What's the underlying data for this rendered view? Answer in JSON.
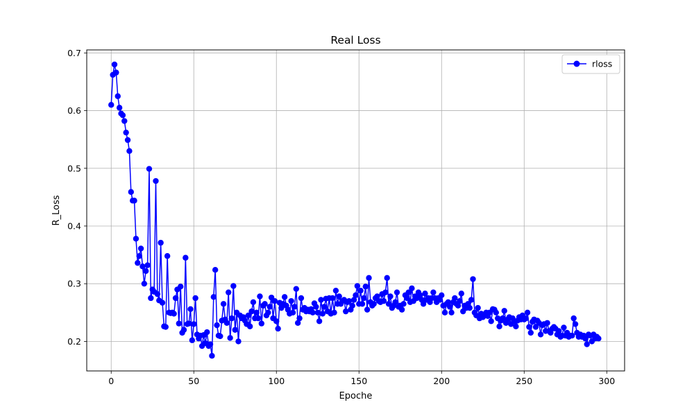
{
  "chart_data": {
    "type": "line",
    "title": "Real Loss",
    "xlabel": "Epoche",
    "ylabel": "R_Loss",
    "xlim": [
      -14.8,
      310.8
    ],
    "ylim": [
      0.1488,
      0.7052
    ],
    "xticks": [
      0,
      50,
      100,
      150,
      200,
      250,
      300
    ],
    "yticks": [
      0.2,
      0.3,
      0.4,
      0.5,
      0.6,
      0.7
    ],
    "xtick_labels": [
      "0",
      "50",
      "100",
      "150",
      "200",
      "250",
      "300"
    ],
    "ytick_labels": [
      "0.2",
      "0.3",
      "0.4",
      "0.5",
      "0.6",
      "0.7"
    ],
    "grid": true,
    "legend_position": "top-right",
    "series": [
      {
        "name": "rloss",
        "color": "#0000ff",
        "marker": "circle",
        "values": [
          0.61,
          0.662,
          0.68,
          0.666,
          0.625,
          0.605,
          0.595,
          0.592,
          0.582,
          0.562,
          0.549,
          0.53,
          0.459,
          0.444,
          0.444,
          0.378,
          0.336,
          0.348,
          0.361,
          0.33,
          0.3,
          0.322,
          0.332,
          0.499,
          0.275,
          0.29,
          0.286,
          0.478,
          0.282,
          0.271,
          0.371,
          0.267,
          0.226,
          0.225,
          0.348,
          0.25,
          0.249,
          0.25,
          0.248,
          0.275,
          0.29,
          0.231,
          0.295,
          0.215,
          0.22,
          0.345,
          0.23,
          0.231,
          0.256,
          0.202,
          0.23,
          0.275,
          0.212,
          0.205,
          0.21,
          0.192,
          0.211,
          0.197,
          0.216,
          0.192,
          0.195,
          0.175,
          0.277,
          0.324,
          0.228,
          0.21,
          0.209,
          0.236,
          0.265,
          0.238,
          0.232,
          0.285,
          0.206,
          0.24,
          0.296,
          0.22,
          0.25,
          0.2,
          0.245,
          0.24,
          0.242,
          0.236,
          0.23,
          0.245,
          0.226,
          0.252,
          0.268,
          0.24,
          0.25,
          0.24,
          0.278,
          0.231,
          0.262,
          0.265,
          0.245,
          0.25,
          0.26,
          0.276,
          0.24,
          0.27,
          0.235,
          0.222,
          0.267,
          0.258,
          0.265,
          0.277,
          0.262,
          0.255,
          0.248,
          0.27,
          0.25,
          0.26,
          0.291,
          0.232,
          0.24,
          0.275,
          0.255,
          0.258,
          0.252,
          0.255,
          0.252,
          0.256,
          0.25,
          0.266,
          0.26,
          0.25,
          0.235,
          0.272,
          0.248,
          0.26,
          0.274,
          0.252,
          0.275,
          0.248,
          0.275,
          0.25,
          0.288,
          0.265,
          0.278,
          0.265,
          0.27,
          0.272,
          0.252,
          0.268,
          0.27,
          0.255,
          0.262,
          0.272,
          0.28,
          0.296,
          0.265,
          0.288,
          0.265,
          0.275,
          0.295,
          0.255,
          0.31,
          0.268,
          0.262,
          0.265,
          0.275,
          0.278,
          0.27,
          0.268,
          0.282,
          0.27,
          0.285,
          0.31,
          0.265,
          0.278,
          0.258,
          0.262,
          0.268,
          0.285,
          0.26,
          0.262,
          0.255,
          0.265,
          0.28,
          0.275,
          0.285,
          0.268,
          0.292,
          0.27,
          0.278,
          0.275,
          0.285,
          0.28,
          0.272,
          0.265,
          0.283,
          0.272,
          0.275,
          0.268,
          0.275,
          0.285,
          0.275,
          0.268,
          0.275,
          0.272,
          0.28,
          0.262,
          0.25,
          0.265,
          0.268,
          0.26,
          0.25,
          0.268,
          0.275,
          0.265,
          0.262,
          0.27,
          0.283,
          0.252,
          0.262,
          0.258,
          0.265,
          0.258,
          0.272,
          0.308,
          0.25,
          0.245,
          0.258,
          0.24,
          0.248,
          0.242,
          0.245,
          0.25,
          0.244,
          0.25,
          0.235,
          0.256,
          0.255,
          0.25,
          0.24,
          0.226,
          0.236,
          0.24,
          0.253,
          0.232,
          0.238,
          0.242,
          0.23,
          0.24,
          0.235,
          0.226,
          0.236,
          0.242,
          0.238,
          0.245,
          0.238,
          0.24,
          0.25,
          0.225,
          0.215,
          0.234,
          0.238,
          0.225,
          0.236,
          0.232,
          0.212,
          0.228,
          0.23,
          0.218,
          0.232,
          0.218,
          0.215,
          0.222,
          0.225,
          0.222,
          0.212,
          0.218,
          0.208,
          0.21,
          0.224,
          0.21,
          0.215,
          0.208,
          0.21,
          0.21,
          0.24,
          0.23,
          0.215,
          0.208,
          0.212,
          0.208,
          0.21,
          0.205,
          0.195,
          0.212,
          0.21,
          0.2,
          0.212,
          0.205,
          0.208,
          0.205
        ]
      }
    ]
  }
}
